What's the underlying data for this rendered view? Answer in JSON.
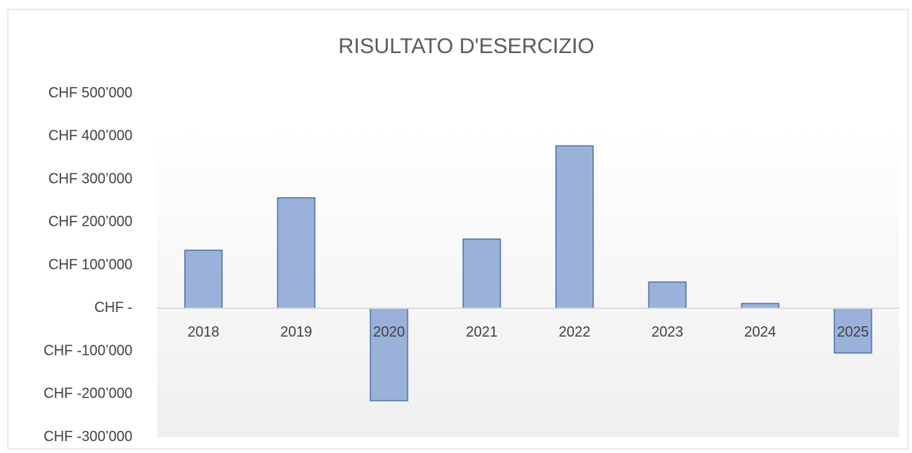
{
  "chart_data": {
    "type": "bar",
    "title": "RISULTATO D'ESERCIZIO",
    "categories": [
      "2018",
      "2019",
      "2020",
      "2021",
      "2022",
      "2023",
      "2024",
      "2025"
    ],
    "values": [
      135000,
      257000,
      -215000,
      161000,
      378000,
      61000,
      11000,
      -104000
    ],
    "color": "#9ab2da",
    "border_color": "#4f76b3",
    "ylim": [
      -300000,
      500000
    ],
    "yticks": [
      {
        "value": -300000,
        "label": "CHF -300’000"
      },
      {
        "value": -200000,
        "label": "CHF -200’000"
      },
      {
        "value": -100000,
        "label": "CHF -100’000"
      },
      {
        "value": 0,
        "label": "CHF -"
      },
      {
        "value": 100000,
        "label": "CHF 100’000"
      },
      {
        "value": 200000,
        "label": "CHF 200’000"
      },
      {
        "value": 300000,
        "label": "CHF 300’000"
      },
      {
        "value": 400000,
        "label": "CHF 400’000"
      },
      {
        "value": 500000,
        "label": "CHF 500’000"
      }
    ],
    "grid": false
  }
}
